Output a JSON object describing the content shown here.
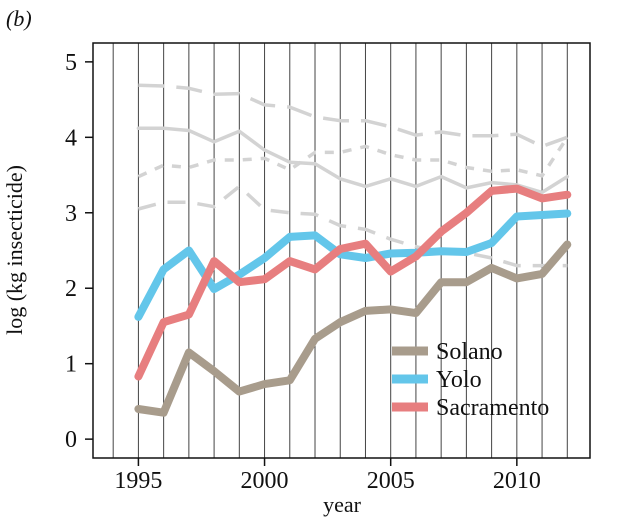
{
  "panel_label": "(b)",
  "chart_data": {
    "type": "line",
    "xlabel": "year",
    "ylabel": "log (kg insecticide)",
    "xlim": [
      1993.2,
      2012.9
    ],
    "ylim": [
      -0.25,
      5.25
    ],
    "x_ticks": [
      1995,
      2000,
      2005,
      2010
    ],
    "y_ticks": [
      0,
      1,
      2,
      3,
      4,
      5
    ],
    "grid": "vertical lines at each year 1994-2012",
    "legend_position": "bottom-right",
    "x": [
      1995,
      1996,
      1997,
      1998,
      1999,
      2000,
      2001,
      2002,
      2003,
      2004,
      2005,
      2006,
      2007,
      2008,
      2009,
      2010,
      2011,
      2012
    ],
    "series": [
      {
        "name": "Solano",
        "color": "#a89c8c",
        "style": "solid",
        "values": [
          0.4,
          0.35,
          1.15,
          0.9,
          0.63,
          0.73,
          0.78,
          1.33,
          1.55,
          1.7,
          1.72,
          1.67,
          2.08,
          2.08,
          2.27,
          2.13,
          2.19,
          2.58
        ]
      },
      {
        "name": "Yolo",
        "color": "#63c6ea",
        "style": "solid",
        "values": [
          1.62,
          2.25,
          2.5,
          1.99,
          2.18,
          2.4,
          2.68,
          2.7,
          2.45,
          2.4,
          2.46,
          2.47,
          2.49,
          2.48,
          2.6,
          2.95,
          2.97,
          2.99
        ]
      },
      {
        "name": "Sacramento",
        "color": "#e77e7f",
        "style": "solid",
        "values": [
          0.83,
          1.55,
          1.65,
          2.36,
          2.08,
          2.12,
          2.36,
          2.25,
          2.52,
          2.59,
          2.22,
          2.42,
          2.75,
          3.0,
          3.29,
          3.32,
          3.19,
          3.24
        ]
      },
      {
        "color": "#d3d3d3",
        "style": "long-dash",
        "values": [
          4.69,
          4.68,
          4.65,
          4.57,
          4.58,
          4.43,
          4.4,
          4.27,
          4.22,
          4.22,
          4.14,
          4.03,
          4.07,
          4.02,
          4.02,
          4.04,
          3.88,
          4.0
        ]
      },
      {
        "color": "#d3d3d3",
        "style": "solid",
        "values": [
          4.12,
          4.12,
          4.09,
          3.94,
          4.08,
          3.83,
          3.67,
          3.65,
          3.45,
          3.35,
          3.45,
          3.35,
          3.48,
          3.33,
          3.4,
          3.37,
          3.27,
          3.48
        ]
      },
      {
        "color": "#d3d3d3",
        "style": "short-dash",
        "values": [
          3.48,
          3.63,
          3.6,
          3.7,
          3.7,
          3.72,
          3.57,
          3.8,
          3.8,
          3.88,
          3.77,
          3.7,
          3.7,
          3.6,
          3.55,
          3.57,
          3.49,
          4.0
        ]
      },
      {
        "color": "#d3d3d3",
        "style": "dash",
        "values": [
          3.05,
          3.14,
          3.14,
          3.08,
          3.35,
          3.04,
          3.0,
          2.98,
          2.83,
          2.78,
          2.65,
          2.55,
          2.48,
          2.47,
          2.4,
          2.3,
          2.3,
          2.3
        ]
      }
    ]
  }
}
